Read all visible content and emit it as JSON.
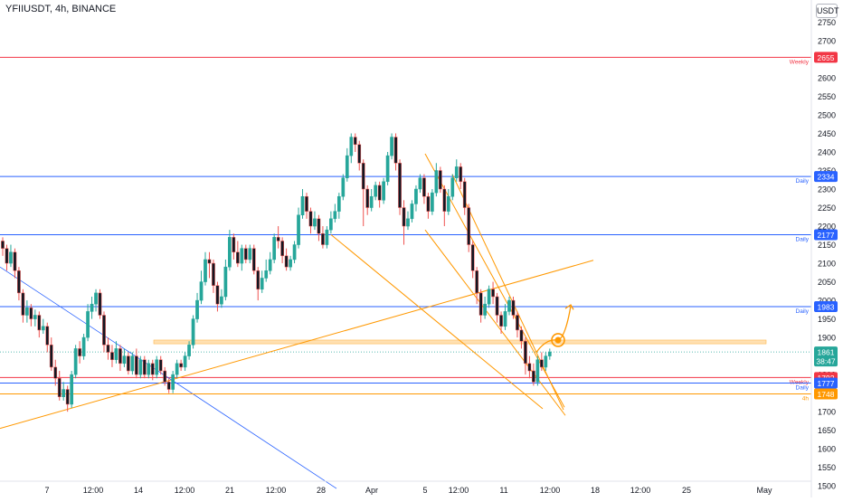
{
  "header": {
    "ticker": "YFIIUSDT, 4h, BINANCE",
    "currency": "USDT"
  },
  "colors": {
    "up": "#26a69a",
    "down": "#ef5350",
    "candle_body_up": "#ffffff",
    "candle_body_down": "#131722",
    "support_red": "#f23645",
    "support_blue": "#2962ff",
    "orange": "#ff9800",
    "zone": "#ffe0b2"
  },
  "chart_data": {
    "type": "candlestick",
    "y_axis": {
      "min": 1470,
      "max": 2790,
      "ticks": [
        2750,
        2700,
        2650,
        2600,
        2550,
        2500,
        2450,
        2400,
        2350,
        2300,
        2250,
        2200,
        2150,
        2100,
        2050,
        2000,
        1950,
        1900,
        1850,
        1800,
        1750,
        1700,
        1650,
        1600,
        1550,
        1500
      ]
    },
    "x_axis": {
      "ticks": [
        "7",
        "12:00",
        "14",
        "12:00",
        "21",
        "12:00",
        "28",
        "Apr",
        "5",
        "12:00",
        "11",
        "12:00",
        "18",
        "12:00",
        "25",
        "May"
      ]
    },
    "levels": [
      {
        "price": 2655,
        "label": "2655",
        "tag": "Weekly",
        "color": "#f23645"
      },
      {
        "price": 2334,
        "label": "2334",
        "tag": "Daily",
        "color": "#2962ff"
      },
      {
        "price": 2177,
        "label": "2177",
        "tag": "Daily",
        "color": "#2962ff"
      },
      {
        "price": 1983,
        "label": "1983",
        "tag": "Daily",
        "color": "#2962ff"
      },
      {
        "price": 1792,
        "label": "1792",
        "tag": "Weekly",
        "color": "#f23645"
      },
      {
        "price": 1777,
        "label": "1777",
        "tag": "Daily",
        "color": "#2962ff"
      },
      {
        "price": 1748,
        "label": "1748",
        "tag": "4h",
        "color": "#ff9800"
      }
    ],
    "current_price": {
      "price": 1861,
      "label": "1861",
      "countdown": "38:47"
    },
    "candles": [
      [
        2160,
        2140,
        2170,
        2120
      ],
      [
        2140,
        2100,
        2150,
        2080
      ],
      [
        2100,
        2130,
        2150,
        2090
      ],
      [
        2130,
        2080,
        2140,
        2060
      ],
      [
        2080,
        2020,
        2090,
        2000
      ],
      [
        2020,
        1960,
        2030,
        1940
      ],
      [
        1960,
        1980,
        2000,
        1940
      ],
      [
        1980,
        1950,
        1990,
        1930
      ],
      [
        1950,
        1960,
        1975,
        1930
      ],
      [
        1960,
        1920,
        1970,
        1900
      ],
      [
        1920,
        1930,
        1950,
        1910
      ],
      [
        1930,
        1880,
        1940,
        1860
      ],
      [
        1880,
        1820,
        1900,
        1810
      ],
      [
        1820,
        1790,
        1840,
        1770
      ],
      [
        1790,
        1740,
        1810,
        1730
      ],
      [
        1740,
        1760,
        1780,
        1730
      ],
      [
        1760,
        1720,
        1770,
        1700
      ],
      [
        1720,
        1800,
        1810,
        1710
      ],
      [
        1800,
        1870,
        1880,
        1790
      ],
      [
        1870,
        1850,
        1890,
        1830
      ],
      [
        1850,
        1900,
        1910,
        1840
      ],
      [
        1900,
        1970,
        1990,
        1890
      ],
      [
        1970,
        1990,
        2010,
        1950
      ],
      [
        1990,
        2020,
        2030,
        1970
      ],
      [
        2020,
        1960,
        2030,
        1950
      ],
      [
        1960,
        1880,
        1970,
        1860
      ],
      [
        1880,
        1860,
        1900,
        1840
      ],
      [
        1860,
        1840,
        1880,
        1820
      ],
      [
        1840,
        1870,
        1890,
        1830
      ],
      [
        1870,
        1830,
        1880,
        1810
      ],
      [
        1830,
        1850,
        1870,
        1820
      ],
      [
        1850,
        1810,
        1860,
        1800
      ],
      [
        1810,
        1850,
        1860,
        1800
      ],
      [
        1850,
        1800,
        1870,
        1790
      ],
      [
        1800,
        1840,
        1850,
        1790
      ],
      [
        1840,
        1800,
        1850,
        1790
      ],
      [
        1800,
        1830,
        1840,
        1790
      ],
      [
        1830,
        1800,
        1840,
        1785
      ],
      [
        1800,
        1840,
        1850,
        1790
      ],
      [
        1840,
        1810,
        1850,
        1800
      ],
      [
        1810,
        1780,
        1820,
        1770
      ],
      [
        1780,
        1760,
        1790,
        1750
      ],
      [
        1760,
        1800,
        1810,
        1750
      ],
      [
        1800,
        1830,
        1840,
        1790
      ],
      [
        1830,
        1820,
        1840,
        1810
      ],
      [
        1820,
        1850,
        1860,
        1810
      ],
      [
        1850,
        1880,
        1890,
        1840
      ],
      [
        1880,
        1950,
        1960,
        1870
      ],
      [
        1950,
        2000,
        2020,
        1940
      ],
      [
        2000,
        2050,
        2080,
        1990
      ],
      [
        2050,
        2110,
        2130,
        2040
      ],
      [
        2110,
        2100,
        2130,
        2060
      ],
      [
        2100,
        2040,
        2110,
        2020
      ],
      [
        2040,
        1990,
        2050,
        1970
      ],
      [
        1990,
        2010,
        2030,
        1980
      ],
      [
        2010,
        2090,
        2110,
        2000
      ],
      [
        2090,
        2170,
        2190,
        2080
      ],
      [
        2170,
        2130,
        2180,
        2110
      ],
      [
        2130,
        2100,
        2160,
        2090
      ],
      [
        2100,
        2140,
        2150,
        2080
      ],
      [
        2140,
        2110,
        2150,
        2100
      ],
      [
        2110,
        2140,
        2150,
        2100
      ],
      [
        2140,
        2080,
        2150,
        2070
      ],
      [
        2080,
        2030,
        2090,
        2000
      ],
      [
        2030,
        2060,
        2080,
        2020
      ],
      [
        2060,
        2080,
        2110,
        2050
      ],
      [
        2080,
        2110,
        2130,
        2070
      ],
      [
        2110,
        2170,
        2180,
        2100
      ],
      [
        2170,
        2160,
        2200,
        2140
      ],
      [
        2160,
        2120,
        2170,
        2100
      ],
      [
        2120,
        2090,
        2140,
        2080
      ],
      [
        2090,
        2110,
        2120,
        2080
      ],
      [
        2110,
        2150,
        2160,
        2100
      ],
      [
        2150,
        2230,
        2250,
        2140
      ],
      [
        2230,
        2280,
        2300,
        2220
      ],
      [
        2280,
        2240,
        2290,
        2220
      ],
      [
        2240,
        2200,
        2250,
        2180
      ],
      [
        2200,
        2220,
        2240,
        2190
      ],
      [
        2220,
        2180,
        2230,
        2160
      ],
      [
        2180,
        2150,
        2200,
        2140
      ],
      [
        2150,
        2190,
        2200,
        2140
      ],
      [
        2190,
        2220,
        2240,
        2180
      ],
      [
        2220,
        2240,
        2260,
        2210
      ],
      [
        2240,
        2280,
        2290,
        2220
      ],
      [
        2280,
        2330,
        2340,
        2270
      ],
      [
        2330,
        2390,
        2410,
        2320
      ],
      [
        2390,
        2440,
        2450,
        2370
      ],
      [
        2440,
        2420,
        2450,
        2400
      ],
      [
        2420,
        2370,
        2430,
        2350
      ],
      [
        2370,
        2300,
        2380,
        2200
      ],
      [
        2300,
        2250,
        2310,
        2230
      ],
      [
        2250,
        2280,
        2300,
        2240
      ],
      [
        2280,
        2310,
        2320,
        2270
      ],
      [
        2310,
        2270,
        2320,
        2250
      ],
      [
        2270,
        2320,
        2330,
        2260
      ],
      [
        2320,
        2390,
        2400,
        2310
      ],
      [
        2390,
        2440,
        2450,
        2380
      ],
      [
        2440,
        2370,
        2450,
        2350
      ],
      [
        2370,
        2250,
        2380,
        2230
      ],
      [
        2250,
        2200,
        2270,
        2150
      ],
      [
        2200,
        2220,
        2240,
        2190
      ],
      [
        2220,
        2260,
        2270,
        2210
      ],
      [
        2260,
        2300,
        2310,
        2240
      ],
      [
        2300,
        2330,
        2340,
        2290
      ],
      [
        2330,
        2280,
        2340,
        2260
      ],
      [
        2280,
        2240,
        2290,
        2220
      ],
      [
        2240,
        2290,
        2300,
        2230
      ],
      [
        2290,
        2350,
        2370,
        2280
      ],
      [
        2350,
        2300,
        2360,
        2290
      ],
      [
        2300,
        2240,
        2310,
        2200
      ],
      [
        2240,
        2280,
        2300,
        2230
      ],
      [
        2280,
        2330,
        2340,
        2270
      ],
      [
        2330,
        2360,
        2380,
        2320
      ],
      [
        2360,
        2320,
        2370,
        2300
      ],
      [
        2320,
        2250,
        2330,
        2230
      ],
      [
        2250,
        2150,
        2260,
        2130
      ],
      [
        2150,
        2080,
        2160,
        2060
      ],
      [
        2080,
        2020,
        2090,
        1990
      ],
      [
        2020,
        1960,
        2030,
        1940
      ],
      [
        1960,
        1990,
        2010,
        1950
      ],
      [
        1990,
        2030,
        2040,
        1980
      ],
      [
        2030,
        2010,
        2050,
        1990
      ],
      [
        2010,
        1960,
        2020,
        1940
      ],
      [
        1960,
        1930,
        1970,
        1910
      ],
      [
        1930,
        1970,
        1990,
        1920
      ],
      [
        1970,
        2000,
        2010,
        1960
      ],
      [
        2000,
        1960,
        2010,
        1950
      ],
      [
        1960,
        1920,
        1970,
        1900
      ],
      [
        1920,
        1890,
        1930,
        1870
      ],
      [
        1890,
        1830,
        1900,
        1800
      ],
      [
        1830,
        1810,
        1850,
        1790
      ],
      [
        1810,
        1780,
        1830,
        1770
      ],
      [
        1780,
        1840,
        1850,
        1770
      ],
      [
        1840,
        1820,
        1860,
        1810
      ],
      [
        1820,
        1850,
        1860,
        1810
      ],
      [
        1850,
        1861,
        1870,
        1840
      ]
    ],
    "drawings": {
      "falling_channel_upper": [
        [
          2340,
          30
        ],
        [
          1705,
          153
        ]
      ],
      "falling_channel_lower": [
        [
          2190,
          0
        ],
        [
          1690,
          155
        ]
      ],
      "rising_line": [
        [
          1660,
          -130
        ],
        [
          2110,
          150
        ]
      ],
      "blue_downtrend": [
        [
          2090,
          -160
        ],
        [
          1490,
          56
        ]
      ],
      "zone": [
        1883,
        1893
      ],
      "projection_circle": 1893
    }
  }
}
